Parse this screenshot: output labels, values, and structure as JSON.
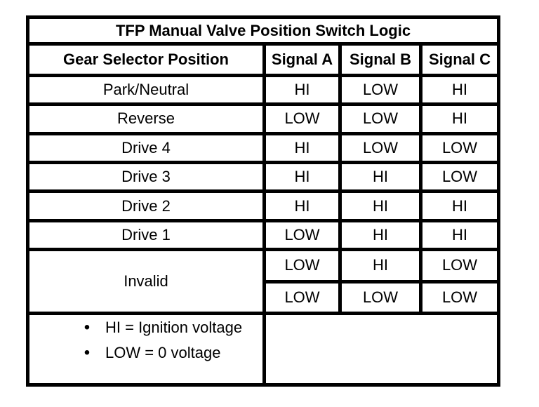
{
  "table": {
    "title": "TFP Manual Valve Position Switch Logic",
    "columns": [
      "Gear Selector Position",
      "Signal A",
      "Signal B",
      "Signal C"
    ],
    "rows": [
      {
        "position": "Park/Neutral",
        "a": "HI",
        "b": "LOW",
        "c": "HI"
      },
      {
        "position": "Reverse",
        "a": "LOW",
        "b": "LOW",
        "c": "HI"
      },
      {
        "position": "Drive 4",
        "a": "HI",
        "b": "LOW",
        "c": "LOW"
      },
      {
        "position": "Drive 3",
        "a": "HI",
        "b": "HI",
        "c": "LOW"
      },
      {
        "position": "Drive 2",
        "a": "HI",
        "b": "HI",
        "c": "HI"
      },
      {
        "position": "Drive 1",
        "a": "LOW",
        "b": "HI",
        "c": "HI"
      }
    ],
    "invalid": {
      "position": "Invalid",
      "sub_rows": [
        {
          "a": "LOW",
          "b": "HI",
          "c": "LOW"
        },
        {
          "a": "LOW",
          "b": "LOW",
          "c": "LOW"
        }
      ]
    },
    "legend": {
      "bullet": "•",
      "items": [
        "HI = Ignition voltage",
        "LOW = 0 voltage"
      ]
    },
    "colors": {
      "border": "#000000",
      "background": "#ffffff",
      "text": "#000000"
    }
  }
}
